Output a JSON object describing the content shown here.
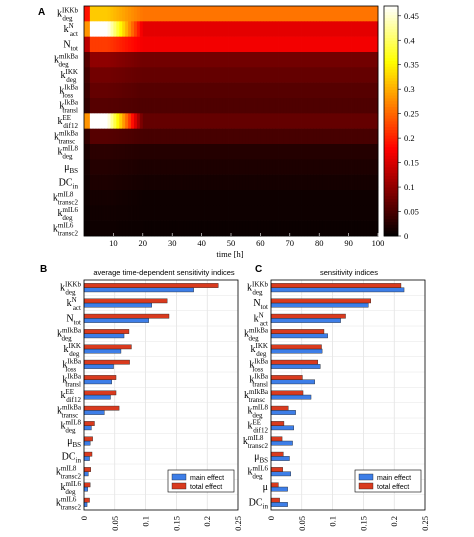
{
  "panels": {
    "a": "A",
    "b": "B",
    "c": "C"
  },
  "chart_data": [
    {
      "id": "A",
      "type": "heatmap",
      "xlabel": "time [h]",
      "x_ticks": [
        10,
        20,
        30,
        40,
        50,
        60,
        70,
        80,
        90,
        100
      ],
      "xlim": [
        0,
        100
      ],
      "colormap": "hot",
      "colorbar": {
        "ticks": [
          0,
          0.05,
          0.1,
          0.15,
          0.2,
          0.25,
          0.3,
          0.35,
          0.4,
          0.45
        ],
        "range": [
          0,
          0.47
        ]
      },
      "rows": [
        {
          "main": "k",
          "sup": "IKKb",
          "sub": "deg",
          "plateau": 0.26,
          "peak": 0.32
        },
        {
          "main": "k",
          "sup": "N",
          "sub": "act",
          "plateau": 0.16,
          "peak": 0.47
        },
        {
          "main": "N",
          "sup": "",
          "sub": "tot",
          "plateau": 0.17,
          "peak": 0.22
        },
        {
          "main": "k",
          "sup": "mIkBa",
          "sub": "deg",
          "plateau": 0.08,
          "peak": 0.1
        },
        {
          "main": "k",
          "sup": "IKK",
          "sub": "deg",
          "plateau": 0.07,
          "peak": 0.08
        },
        {
          "main": "k",
          "sup": "IkBa",
          "sub": "loss",
          "plateau": 0.06,
          "peak": 0.07
        },
        {
          "main": "k",
          "sup": "IkBa",
          "sub": "transl",
          "plateau": 0.055,
          "peak": 0.06
        },
        {
          "main": "k",
          "sup": "EE",
          "sub": "dif12",
          "plateau": 0.07,
          "peak": 0.47
        },
        {
          "main": "k",
          "sup": "mIkBa",
          "sub": "transc",
          "plateau": 0.05,
          "peak": 0.06
        },
        {
          "main": "k",
          "sup": "mIL8",
          "sub": "deg",
          "plateau": 0.025,
          "peak": 0.03
        },
        {
          "main": "μ",
          "sup": "",
          "sub": "BS",
          "plateau": 0.02,
          "peak": 0.025
        },
        {
          "main": "DC",
          "sup": "",
          "sub": "in",
          "plateau": 0.015,
          "peak": 0.02
        },
        {
          "main": "k",
          "sup": "mIL8",
          "sub": "transc2",
          "plateau": 0.01,
          "peak": 0.015
        },
        {
          "main": "k",
          "sup": "mIL6",
          "sub": "deg",
          "plateau": 0.01,
          "peak": 0.012
        },
        {
          "main": "k",
          "sup": "mIL6",
          "sub": "transc2",
          "plateau": 0.008,
          "peak": 0.01
        }
      ]
    },
    {
      "id": "B",
      "type": "bar",
      "orientation": "horizontal",
      "title": "average time-dependent sensitivity indices",
      "xlim": [
        0,
        0.25
      ],
      "x_ticks": [
        "0",
        "0.05",
        "0.1",
        "0.15",
        "0.2",
        "0.25"
      ],
      "categories": [
        {
          "main": "k",
          "sup": "IKKb",
          "sub": "deg"
        },
        {
          "main": "k",
          "sup": "N",
          "sub": "act"
        },
        {
          "main": "N",
          "sup": "",
          "sub": "tot"
        },
        {
          "main": "k",
          "sup": "mIkBa",
          "sub": "deg"
        },
        {
          "main": "k",
          "sup": "IKK",
          "sub": "deg"
        },
        {
          "main": "k",
          "sup": "IkBa",
          "sub": "loss"
        },
        {
          "main": "k",
          "sup": "IkBa",
          "sub": "transl"
        },
        {
          "main": "k",
          "sup": "EE",
          "sub": "dif12"
        },
        {
          "main": "k",
          "sup": "mIkBa",
          "sub": "transc"
        },
        {
          "main": "k",
          "sup": "mIL8",
          "sub": "deg"
        },
        {
          "main": "μ",
          "sup": "",
          "sub": "BS"
        },
        {
          "main": "DC",
          "sup": "",
          "sub": "in"
        },
        {
          "main": "k",
          "sup": "mIL8",
          "sub": "transc2"
        },
        {
          "main": "k",
          "sup": "mIL6",
          "sub": "deg"
        },
        {
          "main": "k",
          "sup": "mIL6",
          "sub": "transc2"
        }
      ],
      "series": [
        {
          "name": "main effect",
          "color": "#3d7ee8",
          "values": [
            0.178,
            0.11,
            0.105,
            0.065,
            0.06,
            0.048,
            0.045,
            0.043,
            0.033,
            0.012,
            0.01,
            0.009,
            0.007,
            0.006,
            0.005
          ]
        },
        {
          "name": "total effect",
          "color": "#d93a1e",
          "values": [
            0.218,
            0.135,
            0.138,
            0.073,
            0.077,
            0.074,
            0.052,
            0.052,
            0.057,
            0.017,
            0.014,
            0.013,
            0.011,
            0.01,
            0.009
          ]
        }
      ],
      "legend": "bottom-right",
      "grid": true
    },
    {
      "id": "C",
      "type": "bar",
      "orientation": "horizontal",
      "title": "sensitivity indices",
      "xlim": [
        0,
        0.25
      ],
      "x_ticks": [
        "0",
        "0.05",
        "0.1",
        "0.15",
        "0.2",
        "0.25"
      ],
      "categories": [
        {
          "main": "k",
          "sup": "IKKb",
          "sub": "deg"
        },
        {
          "main": "N",
          "sup": "",
          "sub": "tot"
        },
        {
          "main": "k",
          "sup": "N",
          "sub": "act"
        },
        {
          "main": "k",
          "sup": "mIkBa",
          "sub": "deg"
        },
        {
          "main": "k",
          "sup": "IKK",
          "sub": "deg"
        },
        {
          "main": "k",
          "sup": "IkBa",
          "sub": "loss"
        },
        {
          "main": "k",
          "sup": "IkBa",
          "sub": "transl"
        },
        {
          "main": "k",
          "sup": "mIkBa",
          "sub": "transc"
        },
        {
          "main": "k",
          "sup": "mIL8",
          "sub": "deg"
        },
        {
          "main": "k",
          "sup": "EE",
          "sub": "dif12"
        },
        {
          "main": "k",
          "sup": "mIL8",
          "sub": "transc2"
        },
        {
          "main": "μ",
          "sup": "",
          "sub": "BS"
        },
        {
          "main": "k",
          "sup": "mIL6",
          "sub": "deg"
        },
        {
          "main": "μ",
          "sup": "",
          "sub": ""
        },
        {
          "main": "DC",
          "sup": "",
          "sub": "in"
        }
      ],
      "series": [
        {
          "name": "main effect",
          "color": "#3d7ee8",
          "values": [
            0.216,
            0.158,
            0.113,
            0.092,
            0.083,
            0.08,
            0.071,
            0.065,
            0.04,
            0.037,
            0.035,
            0.03,
            0.032,
            0.027,
            0.027
          ]
        },
        {
          "name": "total effect",
          "color": "#d93a1e",
          "values": [
            0.211,
            0.162,
            0.121,
            0.086,
            0.082,
            0.076,
            0.051,
            0.052,
            0.028,
            0.021,
            0.018,
            0.02,
            0.019,
            0.012,
            0.014
          ]
        }
      ],
      "legend": "bottom-right",
      "grid": true
    }
  ]
}
